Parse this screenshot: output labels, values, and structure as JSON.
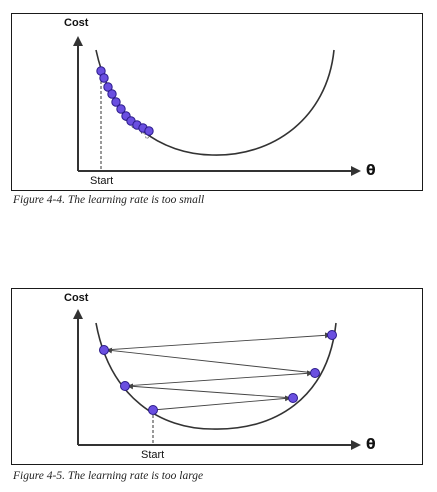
{
  "figure1": {
    "y_axis_label": "Cost",
    "x_axis_label": "θ",
    "start_label": "Start",
    "caption": "Figure 4-4. The learning rate is too small"
  },
  "figure2": {
    "y_axis_label": "Cost",
    "x_axis_label": "θ",
    "start_label": "Start",
    "caption": "Figure 4-5. The learning rate is too large"
  },
  "colors": {
    "point_fill": "#6a4fe0",
    "point_stroke": "#2a1a8a",
    "curve": "#333333",
    "axis": "#333333"
  }
}
